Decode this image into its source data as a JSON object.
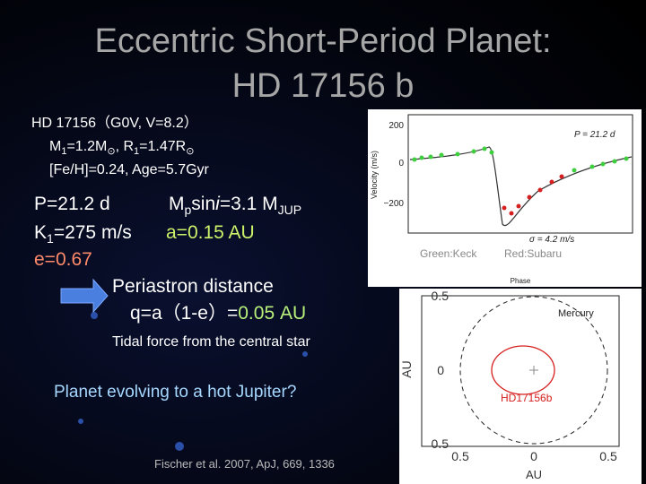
{
  "title": [
    "Eccentric Short-Period Planet:",
    "HD 17156 b"
  ],
  "star": {
    "line1": "HD 17156（G0V, V=8.2）",
    "line2": [
      "M",
      "1",
      "=1.2M",
      "⊙",
      ",  R",
      "1",
      "=1.47R",
      "⊙"
    ],
    "line3": "[Fe/H]=0.24,  Age=5.7Gyr"
  },
  "params": {
    "period": "P=21.2 d",
    "msini": [
      "M",
      "p",
      "sin",
      "i",
      "=3.1 M",
      "JUP"
    ],
    "k": [
      "K",
      "1",
      "=275 m/s"
    ],
    "a": "a=0.15 AU",
    "e": "e=0.67"
  },
  "periastron": {
    "label": "Periastron distance",
    "formula": [
      "q=a（1-e）=",
      "0.05 AU"
    ]
  },
  "tidal": "Tidal force from the central star",
  "question": "Planet evolving to a hot Jupiter?",
  "reference": "Fischer et al. 2007, ApJ, 669, 1336",
  "rv_plot": {
    "period_label": "P = 21.2 d",
    "sigma_label": "σ = 4.2 m/s",
    "y_label": "Velocity (m/s)",
    "x_label": "Phase",
    "yticks": [
      "200",
      "0",
      "−200"
    ],
    "legend": [
      "Green:Keck",
      "Red:Subaru"
    ]
  },
  "orbit_plot": {
    "y_label": "AU",
    "x_label": "AU",
    "yticks": [
      "0.5",
      "0",
      "0.5"
    ],
    "xticks": [
      "0.5",
      "0",
      "0.5"
    ],
    "mercury": "Mercury",
    "planet": "HD17156b"
  }
}
